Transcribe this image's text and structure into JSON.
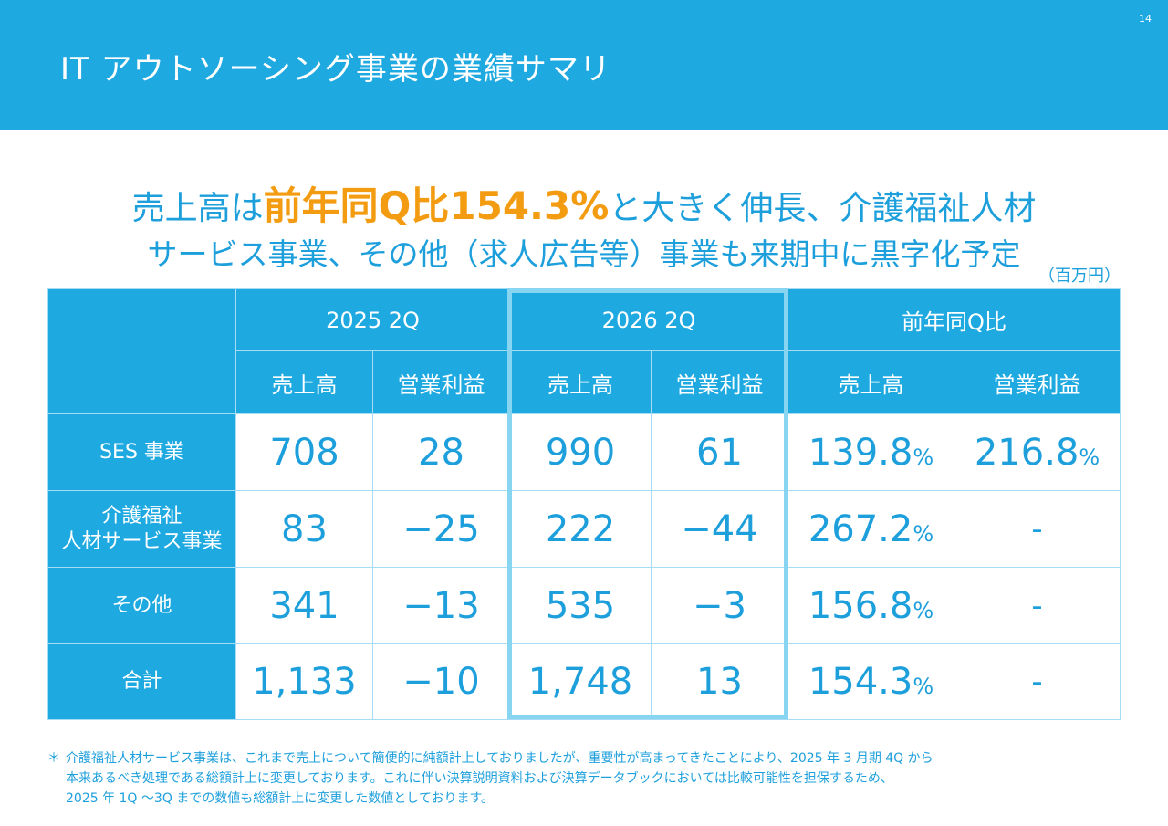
{
  "header": {
    "title": "IT アウトソーシング事業の業績サマリ",
    "page_number": "14"
  },
  "headline": {
    "line1_pre": "売上高は",
    "line1_highlight": "前年同Q比154.3%",
    "line1_post": "と大きく伸長、介護福祉人材",
    "line2": "サービス事業、その他（求人広告等）事業も来期中に黒字化予定"
  },
  "unit": "（百万円）",
  "colors": {
    "header_blue": "#1ea9e1",
    "text_blue": "#1d9fdc",
    "highlight_orange": "#f39c12",
    "frame_light_blue": "#87d5f0"
  },
  "table": {
    "period_headers": [
      "2025 2Q",
      "2026 2Q",
      "前年同Q比"
    ],
    "sub_headers": [
      "売上高",
      "営業利益",
      "売上高",
      "営業利益",
      "売上高",
      "営業利益"
    ],
    "rows": [
      {
        "label_lines": [
          "SES 事業"
        ],
        "values": [
          "708",
          "28",
          "990",
          "61"
        ],
        "ratios": [
          "139.8",
          "216.8"
        ]
      },
      {
        "label_lines": [
          "介護福祉",
          "人材サービス事業"
        ],
        "values": [
          "83",
          "−25",
          "222",
          "−44"
        ],
        "ratios": [
          "267.2",
          "-"
        ]
      },
      {
        "label_lines": [
          "その他"
        ],
        "values": [
          "341",
          "−13",
          "535",
          "−3"
        ],
        "ratios": [
          "156.8",
          "-"
        ]
      },
      {
        "label_lines": [
          "合計"
        ],
        "values": [
          "1,133",
          "−10",
          "1,748",
          "13"
        ],
        "ratios": [
          "154.3",
          "-"
        ]
      }
    ],
    "percent_sign": "%"
  },
  "footnote": {
    "marker": "＊",
    "lines": [
      "介護福祉人材サービス事業は、これまで売上について簡便的に純額計上しておりましたが、重要性が高まってきたことにより、2025 年 3 月期 4Q から",
      "本来あるべき処理である総額計上に変更しております。これに伴い決算説明資料および決算データブックにおいては比較可能性を担保するため、",
      "2025 年 1Q ～3Q までの数値も総額計上に変更した数値としております。"
    ]
  }
}
